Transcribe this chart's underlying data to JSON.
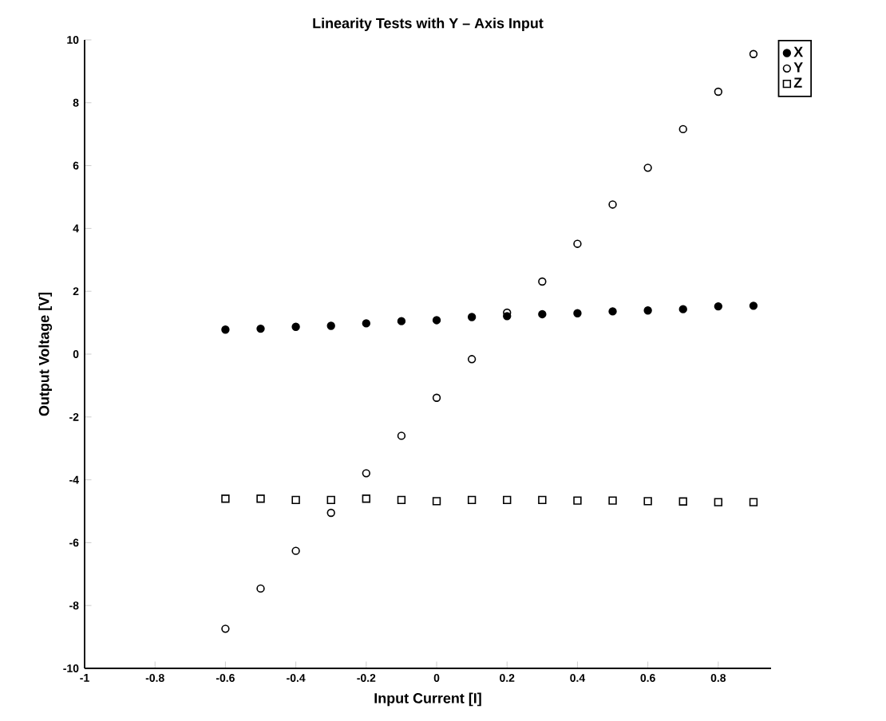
{
  "chart_data": {
    "type": "scatter",
    "title": "Linearity Tests with Y – Axis Input",
    "xlabel": "Input Current [I]",
    "ylabel": "Output Voltage [V]",
    "x": [
      -0.6,
      -0.5,
      -0.4,
      -0.3,
      -0.2,
      -0.1,
      0,
      0.1,
      0.2,
      0.3,
      0.4,
      0.5,
      0.6,
      0.7,
      0.8,
      0.9
    ],
    "series": [
      {
        "name": "X",
        "color": "#000000",
        "marker": "dot",
        "values": [
          0.78,
          0.81,
          0.87,
          0.9,
          0.98,
          1.05,
          1.08,
          1.18,
          1.21,
          1.27,
          1.3,
          1.36,
          1.39,
          1.43,
          1.52,
          1.54
        ]
      },
      {
        "name": "Y",
        "color": "#000000",
        "marker": "circle",
        "values": [
          -8.74,
          -7.46,
          -6.26,
          -5.05,
          -3.79,
          -2.6,
          -1.39,
          -0.16,
          1.32,
          2.31,
          3.51,
          4.76,
          5.93,
          7.16,
          8.35,
          9.55
        ]
      },
      {
        "name": "Z",
        "color": "#000000",
        "marker": "square",
        "values": [
          -4.6,
          -4.6,
          -4.64,
          -4.64,
          -4.6,
          -4.64,
          -4.68,
          -4.64,
          -4.64,
          -4.64,
          -4.66,
          -4.66,
          -4.68,
          -4.69,
          -4.71,
          -4.71
        ]
      }
    ],
    "xlim": [
      -1,
      0.95
    ],
    "xticks": [
      -1,
      -0.8,
      -0.6,
      -0.4,
      -0.2,
      0,
      0.2,
      0.4,
      0.6,
      0.8
    ],
    "ylim": [
      -10,
      10
    ],
    "yticks": [
      -10,
      -8,
      -6,
      -4,
      -2,
      0,
      2,
      4,
      6,
      8,
      10
    ],
    "grid": false,
    "legend": "top right"
  }
}
